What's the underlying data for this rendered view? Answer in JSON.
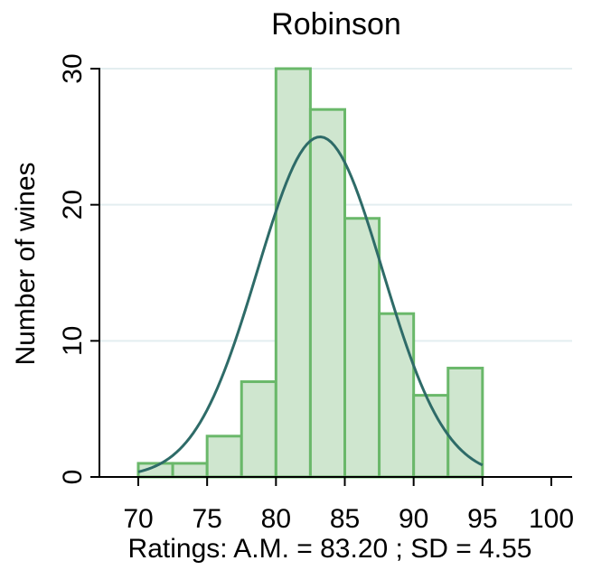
{
  "chart_data": {
    "type": "bar",
    "title": "Robinson",
    "xlabel": "Ratings: A.M. = 83.20 ; SD = 4.55",
    "ylabel": "Number of wines",
    "xlim": [
      67.5,
      102
    ],
    "ylim": [
      0,
      32
    ],
    "x_ticks": [
      70,
      75,
      80,
      85,
      90,
      95,
      100
    ],
    "y_ticks": [
      0,
      10,
      20,
      30
    ],
    "bin_width": 2.5,
    "bins": [
      {
        "start": 70.0,
        "end": 72.5,
        "count": 1
      },
      {
        "start": 72.5,
        "end": 75.0,
        "count": 1
      },
      {
        "start": 75.0,
        "end": 77.5,
        "count": 3
      },
      {
        "start": 77.5,
        "end": 80.0,
        "count": 7
      },
      {
        "start": 80.0,
        "end": 82.5,
        "count": 30
      },
      {
        "start": 82.5,
        "end": 85.0,
        "count": 27
      },
      {
        "start": 85.0,
        "end": 87.5,
        "count": 19
      },
      {
        "start": 87.5,
        "end": 90.0,
        "count": 12
      },
      {
        "start": 90.0,
        "end": 92.5,
        "count": 6
      },
      {
        "start": 92.5,
        "end": 95.0,
        "count": 8
      }
    ],
    "normal_curve": {
      "mean": 83.2,
      "sd": 4.55,
      "x_range": [
        70,
        95
      ]
    },
    "grid": true,
    "colors": {
      "bar_fill": "#cfe6cf",
      "bar_edge": "#6ab86a",
      "curve": "#2e6b68",
      "grid": "#e3eef0"
    }
  }
}
